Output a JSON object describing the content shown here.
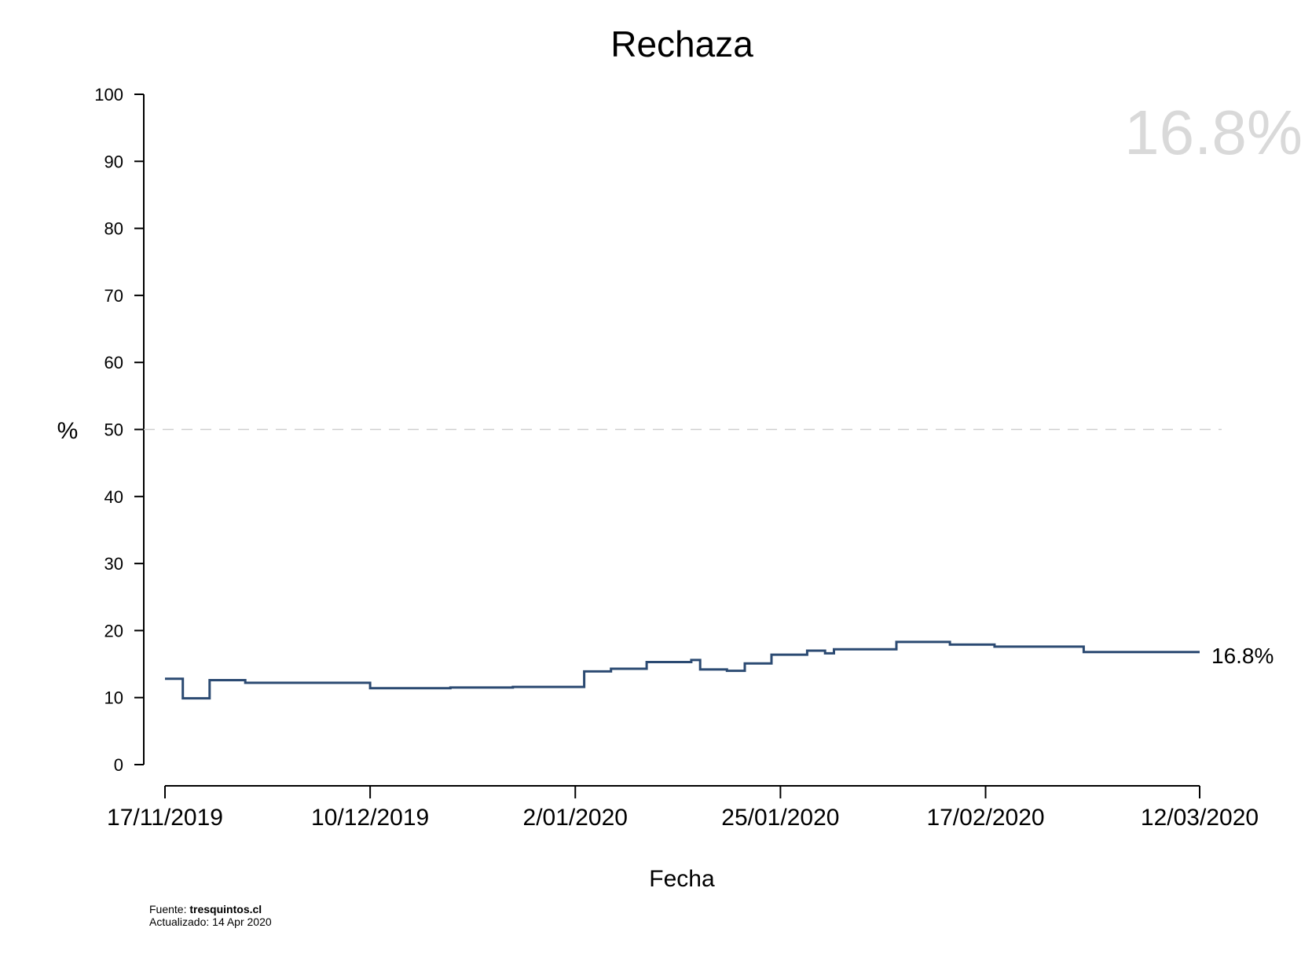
{
  "chart_data": {
    "type": "line",
    "step": true,
    "title": "Rechaza",
    "xlabel": "Fecha",
    "ylabel": "%",
    "ylim": [
      0,
      100
    ],
    "yticks": [
      0,
      10,
      20,
      30,
      40,
      50,
      60,
      70,
      80,
      90,
      100
    ],
    "xlim": [
      "2019-11-17",
      "2020-03-12"
    ],
    "xticks": [
      {
        "date": "2019-11-17",
        "label": "17/11/2019"
      },
      {
        "date": "2019-12-10",
        "label": "10/12/2019"
      },
      {
        "date": "2020-01-02",
        "label": "2/01/2020"
      },
      {
        "date": "2020-01-25",
        "label": "25/01/2020"
      },
      {
        "date": "2020-02-17",
        "label": "17/02/2020"
      },
      {
        "date": "2020-03-12",
        "label": "12/03/2020"
      }
    ],
    "reference_line": {
      "y": 50,
      "style": "dashed"
    },
    "series": [
      {
        "color": "#2b4a72",
        "points": [
          {
            "x": "2019-11-17",
            "y": 12.8
          },
          {
            "x": "2019-11-19",
            "y": 9.9
          },
          {
            "x": "2019-11-22",
            "y": 12.6
          },
          {
            "x": "2019-11-26",
            "y": 12.2
          },
          {
            "x": "2019-12-10",
            "y": 11.4
          },
          {
            "x": "2019-12-19",
            "y": 11.5
          },
          {
            "x": "2019-12-26",
            "y": 11.6
          },
          {
            "x": "2020-01-03",
            "y": 13.9
          },
          {
            "x": "2020-01-06",
            "y": 14.3
          },
          {
            "x": "2020-01-10",
            "y": 15.3
          },
          {
            "x": "2020-01-15",
            "y": 15.6
          },
          {
            "x": "2020-01-16",
            "y": 14.2
          },
          {
            "x": "2020-01-19",
            "y": 14.0
          },
          {
            "x": "2020-01-21",
            "y": 15.1
          },
          {
            "x": "2020-01-24",
            "y": 16.4
          },
          {
            "x": "2020-01-28",
            "y": 17.0
          },
          {
            "x": "2020-01-30",
            "y": 16.6
          },
          {
            "x": "2020-01-31",
            "y": 17.2
          },
          {
            "x": "2020-02-07",
            "y": 18.3
          },
          {
            "x": "2020-02-13",
            "y": 17.9
          },
          {
            "x": "2020-02-18",
            "y": 17.6
          },
          {
            "x": "2020-02-28",
            "y": 16.8
          },
          {
            "x": "2020-03-12",
            "y": 16.8
          }
        ]
      }
    ],
    "end_label": "16.8%",
    "watermark": "16.8%",
    "watermark_color": "#d9d9d9"
  },
  "footer": {
    "source_prefix": "Fuente: ",
    "source_site": "tresquintos.cl",
    "updated": "Actualizado: 14 Apr 2020"
  }
}
